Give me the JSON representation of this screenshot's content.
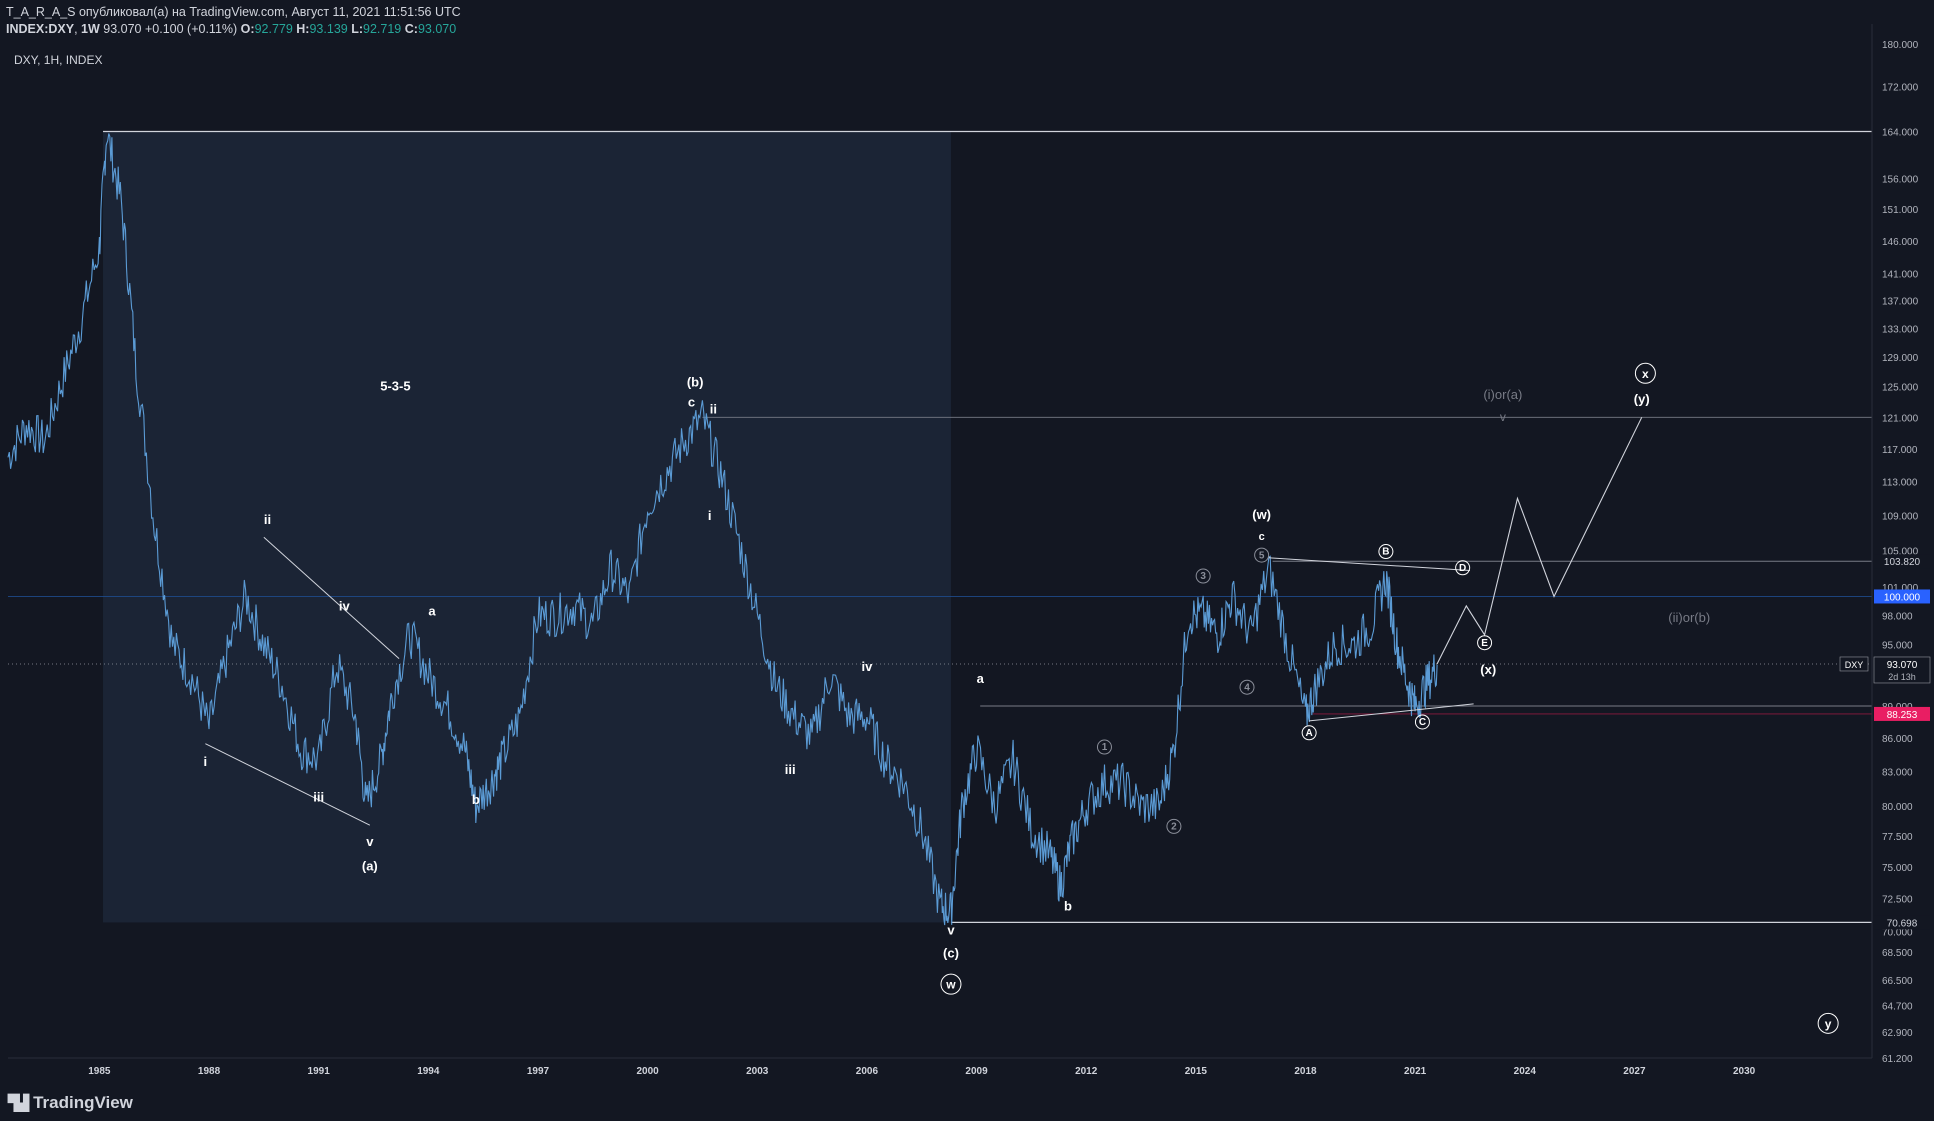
{
  "header": {
    "line1": "T_A_R_A_S опубликовал(а) на TradingView.com, Август 11, 2021 11:51:56 UTC",
    "symbol": "INDEX:DXY",
    "interval": "1W",
    "last": "93.070",
    "change": "+0.100 (+0.11%)",
    "o_label": "O:",
    "o": "92.779",
    "h_label": "H:",
    "h": "93.139",
    "l_label": "L:",
    "l": "92.719",
    "c_label": "C:",
    "c": "93.070"
  },
  "legend": "DXY, 1H, INDEX",
  "logo": "TradingView",
  "colors": {
    "background": "#131722",
    "price_line": "#5b9bd5",
    "box_fill": "#1b2435",
    "label_white": "#ffffff",
    "label_gray": "#8a8e99",
    "red_level": "#e91e63",
    "blue_level": "#2962ff"
  },
  "chart_data": {
    "type": "line",
    "title": "",
    "xlabel": "",
    "ylabel": "",
    "x_ticks": [
      "1985",
      "1988",
      "1991",
      "1994",
      "1997",
      "2000",
      "2003",
      "2006",
      "2009",
      "2012",
      "2015",
      "2018",
      "2021",
      "2024",
      "2027",
      "2030"
    ],
    "y_ticks": [
      "180.000",
      "172.000",
      "164.000",
      "156.000",
      "151.000",
      "146.000",
      "141.000",
      "137.000",
      "133.000",
      "129.000",
      "125.000",
      "121.000",
      "117.000",
      "113.000",
      "109.000",
      "105.000",
      "101.000",
      "98.000",
      "95.000",
      "92.000",
      "89.000",
      "86.000",
      "83.000",
      "80.000",
      "77.500",
      "75.000",
      "72.500",
      "70.000",
      "68.500",
      "66.500",
      "64.700",
      "62.900",
      "61.200"
    ],
    "ylim": [
      61.2,
      180
    ],
    "xlim": [
      1982.5,
      2033.5
    ],
    "series": [
      {
        "name": "",
        "x": [
          1982.5,
          1983.0,
          1983.5,
          1984.0,
          1984.5,
          1985.0,
          1985.2,
          1985.6,
          1986.0,
          1986.5,
          1987.0,
          1987.5,
          1988.0,
          1988.5,
          1989.0,
          1989.5,
          1990.0,
          1990.5,
          1991.0,
          1991.5,
          1992.0,
          1992.3,
          1992.7,
          1993.0,
          1993.5,
          1994.0,
          1994.5,
          1995.0,
          1995.3,
          1995.7,
          1996.0,
          1996.5,
          1997.0,
          1997.5,
          1998.0,
          1998.5,
          1999.0,
          1999.5,
          2000.0,
          2000.5,
          2001.0,
          2001.5,
          2002.0,
          2002.5,
          2003.0,
          2003.5,
          2004.0,
          2004.5,
          2005.0,
          2005.5,
          2006.0,
          2006.5,
          2007.0,
          2007.5,
          2008.0,
          2008.3,
          2008.6,
          2009.0,
          2009.5,
          2010.0,
          2010.5,
          2011.0,
          2011.3,
          2011.6,
          2012.0,
          2012.5,
          2013.0,
          2013.5,
          2014.0,
          2014.4,
          2014.8,
          2015.2,
          2015.6,
          2016.0,
          2016.5,
          2017.0,
          2017.5,
          2018.0,
          2018.3,
          2018.8,
          2019.3,
          2019.8,
          2020.2,
          2020.5,
          2020.8,
          2021.0,
          2021.3,
          2021.6
        ],
        "values": [
          116,
          120,
          118,
          126,
          134,
          145,
          164,
          152,
          128,
          108,
          95,
          92,
          87,
          94,
          100,
          95,
          91,
          85,
          84,
          93,
          88,
          80,
          84,
          90,
          96,
          92,
          89,
          85,
          80,
          82,
          84,
          88,
          98,
          98,
          99,
          97,
          103,
          100,
          110,
          114,
          118,
          121,
          114,
          106,
          98,
          91,
          88,
          86,
          92,
          88,
          88,
          84,
          82,
          78,
          72,
          71.5,
          80,
          85,
          80,
          84,
          78,
          76,
          73.5,
          77,
          80,
          82,
          82,
          80,
          80,
          85,
          98,
          98,
          96,
          100,
          96,
          103,
          95,
          88,
          91,
          95,
          95,
          97,
          102,
          95,
          91,
          89,
          91,
          93
        ]
      }
    ],
    "levels": [
      "164.000",
      "121.000",
      "103.820",
      "100.000",
      "89.000",
      "88.253",
      "70.698"
    ],
    "price_tags": {
      "current": "93.070",
      "countdown": "2d 13h",
      "symbol": "DXY",
      "level_103": "103.820",
      "level_100": "100.000",
      "level_88": "88.253",
      "level_70": "70.698"
    },
    "labels": {
      "pattern": "5-3-5",
      "a_big": "(a)",
      "b_big": "(b)",
      "c_big": "(c)",
      "w_circle": "w",
      "w_paren": "(w)",
      "x_paren": "(x)",
      "y_paren": "(y)",
      "x_circle": "x",
      "y_circle": "y",
      "i": "i",
      "ii": "ii",
      "iii": "iii",
      "iv": "iv",
      "v": "v",
      "a": "a",
      "b": "b",
      "c": "c",
      "A": "A",
      "B": "B",
      "C": "C",
      "D": "D",
      "E": "E",
      "n1": "1",
      "n2": "2",
      "n3": "3",
      "n4": "4",
      "n5": "5",
      "ior_a": "(i)or(a)",
      "iior_b": "(ii)or(b)"
    }
  }
}
